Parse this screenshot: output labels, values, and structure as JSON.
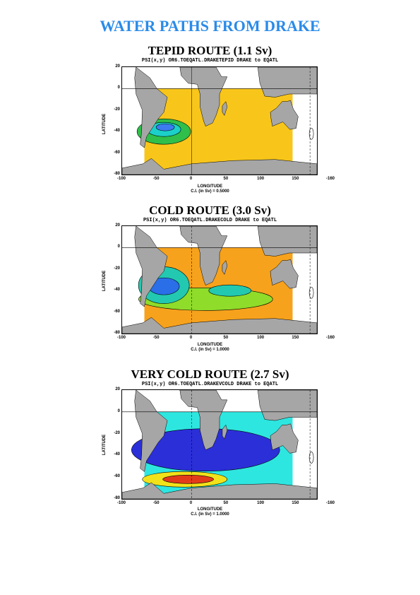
{
  "main_title": "WATER PATHS FROM DRAKE",
  "panels": [
    {
      "title": "TEPID ROUTE (1.1 Sv)",
      "subtitle": "PSI(x,y) OR6.TOEQATL.DRAKETEPID DRAKE to EQATL",
      "xlabel": "LONGITUDE",
      "ylabel": "LATITUDE",
      "ci": "C.I. (in Sv) =  0.5000",
      "ocean_color": "#f8c61a",
      "core_colors": [
        "#2fbf4a",
        "#1bd0c8",
        "#3c7cf0"
      ],
      "chart_data": {
        "type": "heatmap",
        "xlabel": "LONGITUDE",
        "ylabel": "LATITUDE",
        "xlim": [
          -100,
          180
        ],
        "ylim": [
          -80,
          20
        ],
        "xticks": [
          "-100",
          "-50",
          "0",
          "50",
          "100",
          "150",
          "-160"
        ],
        "yticks": [
          "20",
          "0",
          "-20",
          "-40",
          "-60",
          "-80"
        ],
        "contour_interval": 0.5
      }
    },
    {
      "title": "COLD ROUTE (3.0 Sv)",
      "subtitle": "PSI(x,y) OR6.TOEQATL.DRAKECOLD DRAKE to EQATL",
      "xlabel": "LONGITUDE",
      "ylabel": "LATITUDE",
      "ci": "C.I. (in Sv) =  1.0000",
      "ocean_color": "#f7a21c",
      "core_colors": [
        "#8fdc2a",
        "#22c9b0",
        "#2a6fe8"
      ],
      "chart_data": {
        "type": "heatmap",
        "xlabel": "LONGITUDE",
        "ylabel": "LATITUDE",
        "xlim": [
          -100,
          180
        ],
        "ylim": [
          -80,
          20
        ],
        "xticks": [
          "-100",
          "-50",
          "0",
          "50",
          "100",
          "150",
          "-160"
        ],
        "yticks": [
          "20",
          "0",
          "-20",
          "-40",
          "-60",
          "-80"
        ],
        "contour_interval": 1.0
      }
    },
    {
      "title": "VERY COLD ROUTE (2.7 Sv)",
      "subtitle": "PSI(x,y) OR6.TOEQATL.DRAKEVCOLD DRAKE to EQATL",
      "xlabel": "LONGITUDE",
      "ylabel": "LATITUDE",
      "ci": "C.I. (in Sv) =  1.0000",
      "ocean_color": "#2ee6e0",
      "core_colors": [
        "#2b2fd8",
        "#e33b1a",
        "#f2e21a"
      ],
      "chart_data": {
        "type": "heatmap",
        "xlabel": "LONGITUDE",
        "ylabel": "LATITUDE",
        "xlim": [
          -100,
          180
        ],
        "ylim": [
          -80,
          20
        ],
        "xticks": [
          "-100",
          "-50",
          "0",
          "50",
          "100",
          "150",
          "-160"
        ],
        "yticks": [
          "20",
          "0",
          "-20",
          "-40",
          "-60",
          "-80"
        ],
        "contour_interval": 1.0
      }
    }
  ]
}
